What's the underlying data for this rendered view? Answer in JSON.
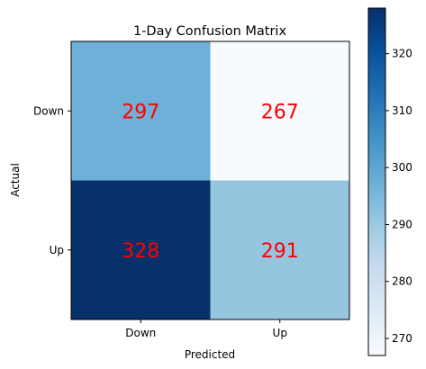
{
  "chart_data": {
    "type": "heatmap",
    "title": "1-Day Confusion Matrix",
    "xlabel": "Predicted",
    "ylabel": "Actual",
    "x_categories": [
      "Down",
      "Up"
    ],
    "y_categories": [
      "Down",
      "Up"
    ],
    "values": [
      [
        297,
        267
      ],
      [
        328,
        291
      ]
    ],
    "colormap": "Blues",
    "colorbar": {
      "range": [
        267,
        328
      ],
      "ticks": [
        270,
        280,
        290,
        300,
        310,
        320
      ]
    },
    "annotation_color": "#ff0000"
  }
}
